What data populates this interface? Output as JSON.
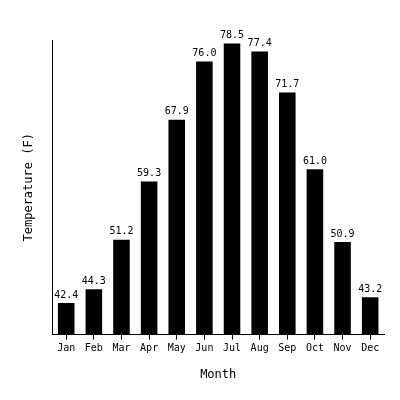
{
  "chart_data": {
    "type": "bar",
    "categories": [
      "Jan",
      "Feb",
      "Mar",
      "Apr",
      "May",
      "Jun",
      "Jul",
      "Aug",
      "Sep",
      "Oct",
      "Nov",
      "Dec"
    ],
    "values": [
      42.4,
      44.3,
      51.2,
      59.3,
      67.9,
      76.0,
      78.5,
      77.4,
      71.7,
      61.0,
      50.9,
      43.2
    ],
    "value_labels": [
      "42.4",
      "44.3",
      "51.2",
      "59.3",
      "67.9",
      "76.0",
      "78.5",
      "77.4",
      "71.7",
      "61.0",
      "50.9",
      "43.2"
    ],
    "color": "#000000",
    "ylim": [
      38,
      79
    ],
    "xlabel": "Month",
    "ylabel": "Temperature (F)",
    "grid": false,
    "data_labels": true,
    "tick_labels": "x"
  }
}
